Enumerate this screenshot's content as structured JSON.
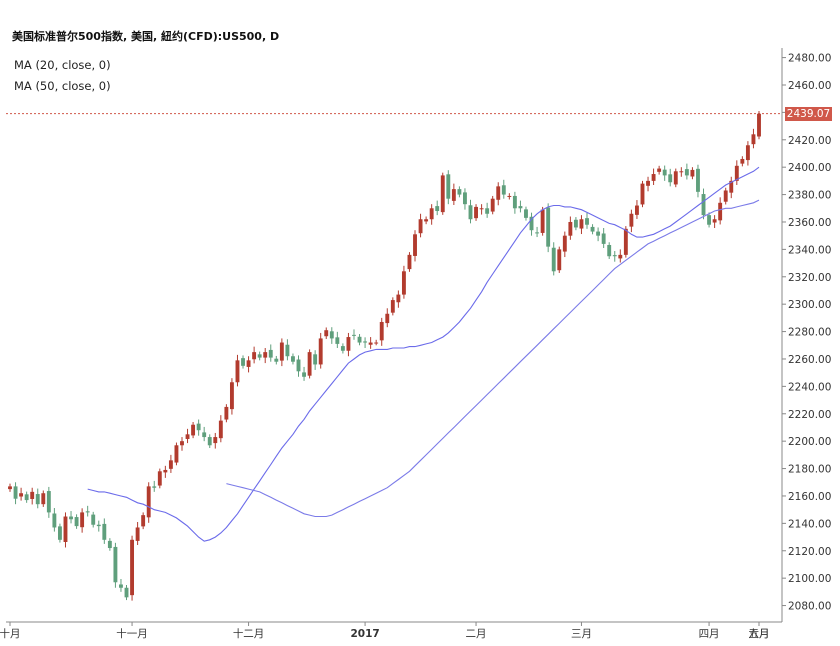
{
  "title": "美国标准普尔500指数, 美国, 紐约(CFD):US500, D",
  "indicators": [
    "MA (20, close, 0)",
    "MA (50, close, 0)"
  ],
  "last_price_label": "2439.07",
  "colors": {
    "up": "#b23b2e",
    "down": "#5f9f7c",
    "ma20": "#6b6bea",
    "ma50": "#7b7be8",
    "price_line": "#d0584a",
    "axis": "#888888"
  },
  "chart_data": {
    "type": "candlestick",
    "y_axis": {
      "ticks": [
        2080,
        2100,
        2120,
        2140,
        2160,
        2180,
        2200,
        2220,
        2240,
        2260,
        2280,
        2300,
        2320,
        2340,
        2360,
        2380,
        2400,
        2420,
        2440,
        2460,
        2480
      ],
      "tick_labels": [
        "2080.00",
        "2100.00",
        "2120.00",
        "2140.00",
        "2160.00",
        "2180.00",
        "2200.00",
        "2220.00",
        "2240.00",
        "2260.00",
        "2280.00",
        "2300.00",
        "2320.00",
        "2340.00",
        "2360.00",
        "2380.00",
        "2400.00",
        "2420.00",
        "",
        "2460.00",
        "2480.00"
      ],
      "range": [
        2068,
        2487
      ],
      "position": "right"
    },
    "x_axis": {
      "labels": [
        {
          "text": "十月",
          "index": 0,
          "bold": false
        },
        {
          "text": "十一月",
          "index": 22,
          "bold": false
        },
        {
          "text": "十二月",
          "index": 43,
          "bold": false
        },
        {
          "text": "2017",
          "index": 64,
          "bold": true
        },
        {
          "text": "二月",
          "index": 84,
          "bold": false
        },
        {
          "text": "三月",
          "index": 103,
          "bold": false
        },
        {
          "text": "四月",
          "index": 126,
          "bold": false
        },
        {
          "text": "五月",
          "index": 145,
          "bold": false
        },
        {
          "text": "六月",
          "index": 167,
          "bold": false
        }
      ]
    },
    "last_price": 2439.07,
    "close": [
      2167,
      2158,
      2162,
      2157,
      2163,
      2154,
      2162,
      2148,
      2137,
      2128,
      2145,
      2143,
      2138,
      2148,
      2148,
      2139,
      2138,
      2128,
      2122,
      2097,
      2093,
      2086,
      2128,
      2137,
      2146,
      2167,
      2166,
      2178,
      2179,
      2186,
      2197,
      2200,
      2205,
      2212,
      2208,
      2203,
      2197,
      2203,
      2215,
      2225,
      2243,
      2259,
      2255,
      2259,
      2265,
      2261,
      2265,
      2261,
      2258,
      2272,
      2262,
      2258,
      2251,
      2247,
      2265,
      2256,
      2275,
      2281,
      2275,
      2271,
      2266,
      2276,
      2277,
      2272,
      2272,
      2272,
      2272,
      2287,
      2293,
      2303,
      2307,
      2324,
      2336,
      2351,
      2362,
      2362,
      2370,
      2368,
      2394,
      2377,
      2384,
      2380,
      2373,
      2362,
      2371,
      2370,
      2366,
      2377,
      2386,
      2380,
      2379,
      2370,
      2370,
      2363,
      2354,
      2352,
      2369,
      2342,
      2324,
      2340,
      2350,
      2360,
      2356,
      2362,
      2358,
      2353,
      2350,
      2344,
      2335,
      2335,
      2336,
      2355,
      2366,
      2372,
      2388,
      2390,
      2395,
      2399,
      2394,
      2389,
      2397,
      2397,
      2394,
      2398,
      2382,
      2365,
      2358,
      2362,
      2374,
      2383,
      2390,
      2401,
      2406,
      2416,
      2424,
      2439
    ],
    "ma20": [
      2165,
      2164,
      2163,
      2163,
      2162,
      2161,
      2160,
      2159,
      2157,
      2155,
      2154,
      2152,
      2150,
      2149,
      2148,
      2146,
      2144,
      2141,
      2138,
      2134,
      2130,
      2127,
      2128,
      2130,
      2133,
      2137,
      2142,
      2147,
      2153,
      2159,
      2165,
      2171,
      2177,
      2183,
      2189,
      2195,
      2200,
      2205,
      2211,
      2216,
      2222,
      2227,
      2232,
      2237,
      2242,
      2247,
      2252,
      2257,
      2260,
      2263,
      2265,
      2266,
      2267,
      2267,
      2267,
      2268,
      2268,
      2268,
      2269,
      2269,
      2270,
      2271,
      2272,
      2274,
      2276,
      2279,
      2283,
      2287,
      2292,
      2297,
      2303,
      2309,
      2316,
      2322,
      2328,
      2334,
      2340,
      2346,
      2352,
      2357,
      2362,
      2366,
      2369,
      2371,
      2372,
      2372,
      2371,
      2371,
      2370,
      2369,
      2367,
      2365,
      2363,
      2361,
      2359,
      2358,
      2356,
      2354,
      2351,
      2349,
      2349,
      2350,
      2351,
      2353,
      2355,
      2357,
      2360,
      2363,
      2366,
      2369,
      2372,
      2375,
      2378,
      2381,
      2384,
      2387,
      2389,
      2391,
      2393,
      2395,
      2397,
      2400
    ],
    "ma50": [
      2169,
      2168,
      2167,
      2166,
      2165,
      2164,
      2163,
      2161,
      2159,
      2157,
      2155,
      2153,
      2151,
      2149,
      2147,
      2146,
      2145,
      2145,
      2145,
      2146,
      2148,
      2150,
      2152,
      2154,
      2156,
      2158,
      2160,
      2162,
      2164,
      2166,
      2169,
      2172,
      2175,
      2178,
      2182,
      2186,
      2190,
      2194,
      2198,
      2202,
      2206,
      2210,
      2214,
      2218,
      2222,
      2226,
      2230,
      2234,
      2238,
      2242,
      2246,
      2250,
      2254,
      2258,
      2262,
      2266,
      2270,
      2274,
      2278,
      2282,
      2286,
      2290,
      2294,
      2298,
      2302,
      2306,
      2310,
      2314,
      2318,
      2322,
      2326,
      2329,
      2332,
      2335,
      2338,
      2341,
      2344,
      2346,
      2348,
      2350,
      2352,
      2354,
      2356,
      2358,
      2360,
      2362,
      2364,
      2366,
      2368,
      2369,
      2370,
      2370,
      2371,
      2372,
      2373,
      2374,
      2376
    ]
  }
}
